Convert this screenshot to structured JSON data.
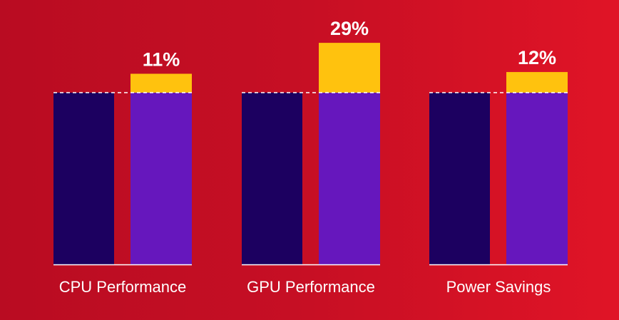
{
  "chart_data": {
    "type": "bar",
    "categories": [
      "CPU Performance",
      "GPU Performance",
      "Power Savings"
    ],
    "series": [
      {
        "values": [
          100,
          100,
          100
        ]
      },
      {
        "values": [
          111,
          129,
          112
        ]
      }
    ],
    "improvements": [
      {
        "value": 11,
        "label": "11%"
      },
      {
        "value": 29,
        "label": "29%"
      },
      {
        "value": 12,
        "label": "12%"
      }
    ],
    "ylim": [
      0,
      129
    ],
    "grid": false,
    "legend": "none",
    "colors": {
      "background_start": "#b90c22",
      "background_end": "#e01426",
      "baseline_bar": "#1c0060",
      "new_bar": "#6617bd",
      "improvement": "#ffc20e",
      "text": "#ffffff",
      "reference_line": "#ffffff"
    }
  }
}
